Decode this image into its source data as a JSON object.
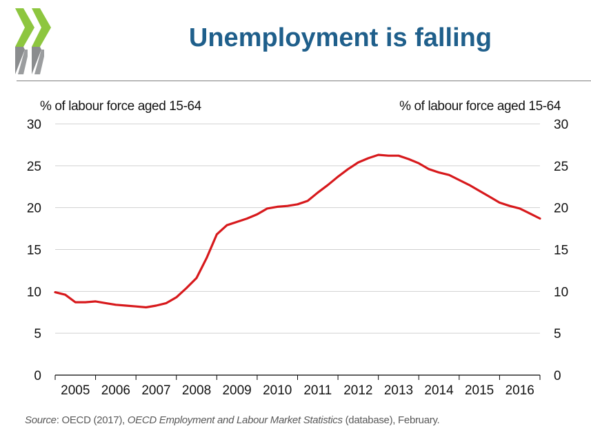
{
  "slide": {
    "title": "Unemployment is falling",
    "logo_icon": "oecd-chevron-logo",
    "brand_colors": {
      "logo_green": "#8dc63f",
      "logo_grey": "#8a8c8e",
      "title": "#1f5f8b",
      "line": "#d7191c"
    }
  },
  "chart_data": {
    "type": "line",
    "title": "",
    "ylabel_left": "% of labour force aged 15-64",
    "ylabel_right": "% of labour force aged 15-64",
    "ylim": [
      0,
      30
    ],
    "yticks": [
      0,
      5,
      10,
      15,
      20,
      25,
      30
    ],
    "xlim": [
      2004.75,
      2016.75
    ],
    "categories": [
      "2005",
      "2006",
      "2007",
      "2008",
      "2009",
      "2010",
      "2011",
      "2012",
      "2013",
      "2014",
      "2015",
      "2016"
    ],
    "grid": true,
    "series": [
      {
        "color": "#d7191c",
        "x": [
          2004.75,
          2005.0,
          2005.25,
          2005.5,
          2005.75,
          2006.0,
          2006.25,
          2006.5,
          2006.75,
          2007.0,
          2007.25,
          2007.5,
          2007.75,
          2008.0,
          2008.25,
          2008.5,
          2008.75,
          2009.0,
          2009.25,
          2009.5,
          2009.75,
          2010.0,
          2010.25,
          2010.5,
          2010.75,
          2011.0,
          2011.25,
          2011.5,
          2011.75,
          2012.0,
          2012.25,
          2012.5,
          2012.75,
          2013.0,
          2013.25,
          2013.5,
          2013.75,
          2014.0,
          2014.25,
          2014.5,
          2014.75,
          2015.0,
          2015.25,
          2015.5,
          2015.75,
          2016.0,
          2016.25,
          2016.5,
          2016.75
        ],
        "values": [
          9.9,
          9.6,
          8.7,
          8.7,
          8.8,
          8.6,
          8.4,
          8.3,
          8.2,
          8.1,
          8.3,
          8.6,
          9.3,
          10.4,
          11.6,
          14.0,
          16.8,
          17.9,
          18.3,
          18.7,
          19.2,
          19.9,
          20.1,
          20.2,
          20.4,
          20.8,
          21.8,
          22.7,
          23.7,
          24.6,
          25.4,
          25.9,
          26.3,
          26.2,
          26.2,
          25.8,
          25.3,
          24.6,
          24.2,
          23.9,
          23.3,
          22.7,
          22.0,
          21.3,
          20.6,
          20.2,
          19.9,
          19.3,
          18.7
        ]
      }
    ]
  },
  "source": {
    "label": "Source",
    "text1": ": OECD (2017), ",
    "publication": "OECD Employment and Labour Market Statistics",
    "text2": " (database), February."
  }
}
